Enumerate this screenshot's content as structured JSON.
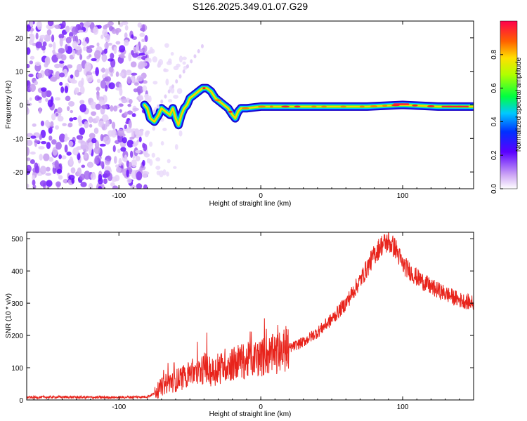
{
  "title": "S126.2025.349.01.07.G29",
  "chart_data": [
    {
      "type": "heatmap",
      "name": "spectrogram",
      "xlabel": "Height of straight line (km)",
      "ylabel": "Frequency (Hz)",
      "xlim": [
        -165,
        150
      ],
      "ylim": [
        -25,
        25
      ],
      "xticks": [
        -100,
        0,
        100
      ],
      "yticks": [
        20,
        10,
        0,
        -10,
        -20
      ],
      "ridge": [
        [
          -82,
          0
        ],
        [
          -80,
          -1
        ],
        [
          -78,
          -4
        ],
        [
          -75,
          -5
        ],
        [
          -72,
          -3
        ],
        [
          -70,
          -1
        ],
        [
          -67,
          -2
        ],
        [
          -64,
          -3
        ],
        [
          -62,
          -1
        ],
        [
          -60,
          -4
        ],
        [
          -58,
          -6
        ],
        [
          -56,
          -3
        ],
        [
          -54,
          -1
        ],
        [
          -52,
          0
        ],
        [
          -50,
          2
        ],
        [
          -47,
          3
        ],
        [
          -44,
          4
        ],
        [
          -41,
          5
        ],
        [
          -38,
          5
        ],
        [
          -35,
          4
        ],
        [
          -32,
          2
        ],
        [
          -29,
          1
        ],
        [
          -26,
          0
        ],
        [
          -23,
          -1
        ],
        [
          -20,
          -3
        ],
        [
          -18,
          -4
        ],
        [
          -16,
          -2
        ],
        [
          -14,
          -1
        ],
        [
          -12,
          -1
        ],
        [
          -10,
          -1
        ],
        [
          0,
          -0.5
        ],
        [
          25,
          -0.5
        ],
        [
          50,
          -0.5
        ],
        [
          75,
          -0.5
        ],
        [
          100,
          0
        ],
        [
          125,
          -0.5
        ],
        [
          150,
          -0.5
        ]
      ],
      "colorbar": {
        "label": "Normalized spectral amplitude",
        "ticks": [
          "0.0",
          "0.2",
          "0.4",
          "0.6",
          "0.8"
        ],
        "range": [
          0,
          1
        ]
      }
    },
    {
      "type": "line",
      "name": "snr",
      "xlabel": "Height of straight line (km)",
      "ylabel": "SNR (10 * v/v)",
      "xlim": [
        -165,
        150
      ],
      "ylim": [
        0,
        520
      ],
      "xticks": [
        -100,
        0,
        100
      ],
      "yticks": [
        0,
        100,
        200,
        300,
        400,
        500
      ],
      "color": "#e8241c",
      "series": [
        {
          "name": "SNR",
          "x": [
            -165,
            -140,
            -120,
            -100,
            -90,
            -80,
            -75,
            -70,
            -65,
            -60,
            -55,
            -50,
            -45,
            -40,
            -35,
            -30,
            -25,
            -20,
            -15,
            -10,
            -5,
            0,
            5,
            10,
            15,
            20,
            25,
            30,
            40,
            50,
            60,
            70,
            75,
            80,
            85,
            90,
            95,
            100,
            110,
            120,
            130,
            140,
            150
          ],
          "y": [
            8,
            9,
            8,
            8,
            9,
            10,
            20,
            40,
            55,
            60,
            70,
            90,
            80,
            100,
            85,
            95,
            110,
            110,
            120,
            120,
            130,
            130,
            140,
            140,
            150,
            160,
            170,
            180,
            210,
            250,
            300,
            370,
            410,
            450,
            480,
            490,
            470,
            420,
            380,
            350,
            330,
            310,
            300
          ]
        }
      ]
    }
  ]
}
